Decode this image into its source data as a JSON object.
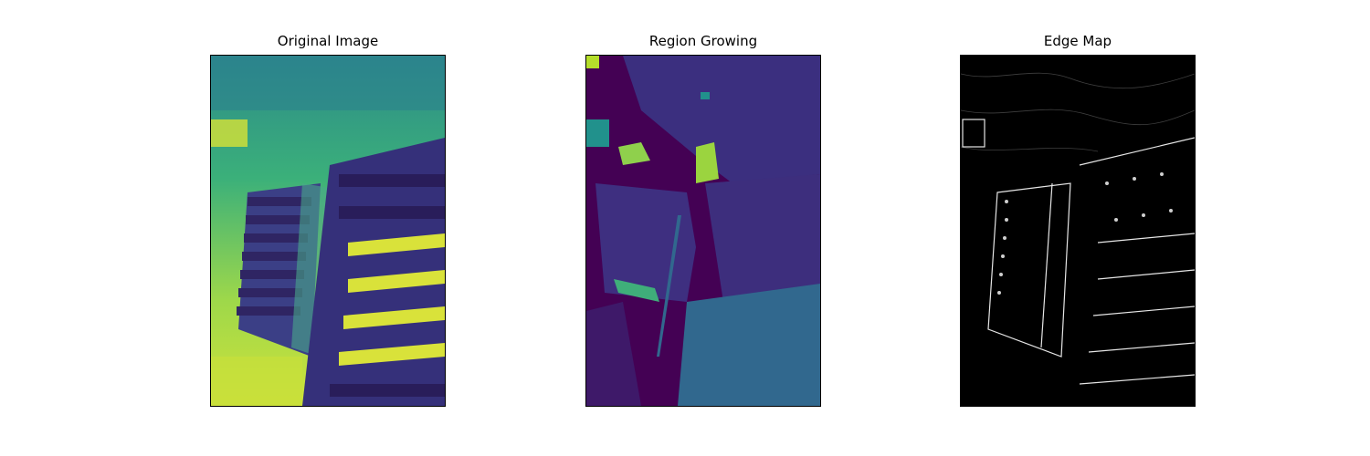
{
  "figure": {
    "panels": [
      {
        "title": "Original Image",
        "colormap": "viridis",
        "image_description": ""
      },
      {
        "title": "Region Growing",
        "colormap": "viridis",
        "image_description": ""
      },
      {
        "title": "Edge Map",
        "colormap": "gray",
        "image_description": ""
      }
    ]
  },
  "colors": {
    "viridis_dark": "#440154",
    "viridis_indigo": "#3b2f7f",
    "viridis_blue": "#31688e",
    "viridis_teal": "#21918c",
    "viridis_green": "#5ec962",
    "viridis_yellow": "#b5de2b",
    "viridis_bright": "#fde725",
    "edge_bg": "#000000",
    "edge_line": "#e6e6e6"
  }
}
